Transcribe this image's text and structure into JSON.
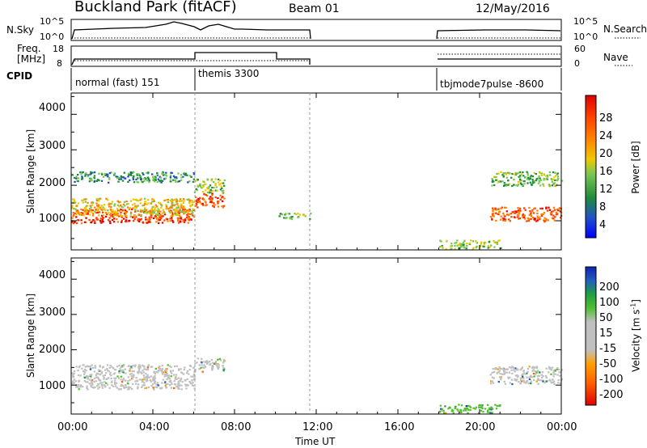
{
  "header": {
    "station": "Buckland Park (fitACF)",
    "beam": "Beam 01",
    "date": "12/May/2016"
  },
  "noise_panel": {
    "left_label": "N.Sky",
    "left_ticks": [
      "10^5",
      "10^0"
    ],
    "right_label": "N.Search",
    "right_ticks": [
      "10^5",
      "10^0"
    ]
  },
  "freq_panel": {
    "left_label_1": "Freq.",
    "left_label_2": "[MHz]",
    "left_ticks": [
      "18",
      "8"
    ],
    "right_label": "Nave",
    "right_ticks": [
      "60",
      "0"
    ]
  },
  "cpid_panel": {
    "label": "CPID",
    "segments": [
      "normal (fast) 151",
      "themis 3300",
      "tbjmode7pulse -8600"
    ]
  },
  "power_panel": {
    "ylabel": "Slant Range [km]",
    "yticks": [
      "4000",
      "3000",
      "2000",
      "1000"
    ],
    "colorbar_label": "Power [dB]",
    "colorbar_ticks": [
      "28",
      "24",
      "20",
      "16",
      "12",
      "8",
      "4"
    ]
  },
  "velocity_panel": {
    "ylabel": "Slant Range [km]",
    "yticks": [
      "4000",
      "3000",
      "2000",
      "1000"
    ],
    "colorbar_label": "Velocity [m s",
    "colorbar_label_sup": "-1",
    "colorbar_label_end": "]",
    "colorbar_ticks": [
      "200",
      "100",
      "50",
      "15",
      "-15",
      "-50",
      "-100",
      "-200"
    ]
  },
  "x_axis": {
    "label": "Time UT",
    "ticks": [
      "00:00",
      "04:00",
      "08:00",
      "12:00",
      "16:00",
      "20:00",
      "00:00"
    ]
  },
  "colors": {
    "power_scale": [
      "#0000ff",
      "#2050c8",
      "#1e8c3c",
      "#7ac850",
      "#f0c800",
      "#ff8000",
      "#ff4000",
      "#e00000"
    ],
    "velocity_scale": [
      "#e00000",
      "#ff6000",
      "#ffa000",
      "#c0c0c0",
      "#c0c0c0",
      "#50c030",
      "#20a040",
      "#2060c0",
      "#1020b0"
    ]
  },
  "chart_data": [
    {
      "type": "heatmap",
      "title": "Power",
      "xlabel": "Time UT",
      "ylabel": "Slant Range [km]",
      "xlim": [
        0,
        24
      ],
      "ylim": [
        180,
        4600
      ],
      "colorbar": {
        "label": "Power [dB]",
        "range": [
          0,
          31
        ]
      },
      "echo_regions": [
        {
          "t_start": 0,
          "t_end": 6,
          "range_center_km": 1150,
          "range_halfwidth_km": 200,
          "power_db": 27
        },
        {
          "t_start": 0,
          "t_end": 6,
          "range_center_km": 1400,
          "range_halfwidth_km": 250,
          "power_db": 18
        },
        {
          "t_start": 0,
          "t_end": 6,
          "range_center_km": 2250,
          "range_halfwidth_km": 150,
          "power_db": 9
        },
        {
          "t_start": 6,
          "t_end": 7.5,
          "range_center_km": 1600,
          "range_halfwidth_km": 200,
          "power_db": 26
        },
        {
          "t_start": 6,
          "t_end": 7.5,
          "range_center_km": 2000,
          "range_halfwidth_km": 200,
          "power_db": 14
        },
        {
          "t_start": 10,
          "t_end": 11.7,
          "range_center_km": 1150,
          "range_halfwidth_km": 80,
          "power_db": 12
        },
        {
          "t_start": 20.5,
          "t_end": 24,
          "range_center_km": 1200,
          "range_halfwidth_km": 200,
          "power_db": 25
        },
        {
          "t_start": 20.5,
          "t_end": 24,
          "range_center_km": 2200,
          "range_halfwidth_km": 200,
          "power_db": 12
        },
        {
          "t_start": 18,
          "t_end": 21,
          "range_center_km": 350,
          "range_halfwidth_km": 120,
          "power_db": 14
        }
      ]
    },
    {
      "type": "heatmap",
      "title": "Velocity",
      "xlabel": "Time UT",
      "ylabel": "Slant Range [km]",
      "xlim": [
        0,
        24
      ],
      "ylim": [
        180,
        4600
      ],
      "colorbar": {
        "label": "Velocity [m s-1]",
        "range": [
          -250,
          250
        ]
      },
      "echo_regions": [
        {
          "t_start": 0,
          "t_end": 6,
          "range_center_km": 1250,
          "range_halfwidth_km": 350,
          "velocity_ms": 0
        },
        {
          "t_start": 6,
          "t_end": 7.5,
          "range_center_km": 1600,
          "range_halfwidth_km": 200,
          "velocity_ms": 0
        },
        {
          "t_start": 20.5,
          "t_end": 24,
          "range_center_km": 1300,
          "range_halfwidth_km": 250,
          "velocity_ms": 0
        },
        {
          "t_start": 18,
          "t_end": 21,
          "range_center_km": 350,
          "range_halfwidth_km": 120,
          "velocity_ms": 60
        }
      ]
    }
  ]
}
